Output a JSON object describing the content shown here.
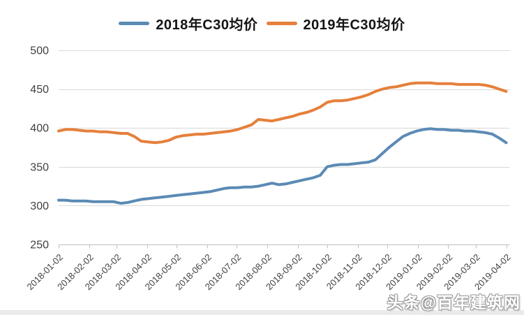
{
  "legend": [
    {
      "label": "2018年C30均价",
      "color": "#5b8ab5"
    },
    {
      "label": "2019年C30均价",
      "color": "#e5803b"
    }
  ],
  "watermark": "头条@百年建筑网",
  "chart_data": {
    "type": "line",
    "title": "",
    "xlabel": "",
    "ylabel": "",
    "ylim": [
      250,
      500
    ],
    "y_ticks": [
      250,
      300,
      350,
      400,
      450,
      500
    ],
    "x_tick_labels": [
      "2018-01-02",
      "2018-02-02",
      "2018-03-02",
      "2018-04-02",
      "2018-05-02",
      "2018-06-02",
      "2018-07-02",
      "2018-08-02",
      "2018-09-02",
      "2018-10-02",
      "2018-11-02",
      "2018-12-02",
      "2019-01-02",
      "2019-02-02",
      "2019-03-02",
      "2019-04-02"
    ],
    "x_tick_day_offsets": [
      0,
      31,
      59,
      90,
      120,
      151,
      181,
      212,
      243,
      273,
      304,
      334,
      365,
      396,
      424,
      455
    ],
    "x_day_span": 455,
    "sample_interval_days": 7,
    "grid": true,
    "legend_position": "top",
    "grid_color": "#d9d9d9",
    "axis_color": "#bfbfbf",
    "tick_label_color": "#3f3f3f",
    "series": [
      {
        "key": "2018-c30",
        "name": "2018年C30均价",
        "color": "#5b8ab5",
        "values": [
          307,
          307,
          306,
          306,
          306,
          305,
          305,
          305,
          305,
          303,
          304,
          306,
          308,
          309,
          310,
          311,
          312,
          313,
          314,
          315,
          316,
          317,
          318,
          320,
          322,
          323,
          323,
          324,
          324,
          325,
          327,
          329,
          327,
          328,
          330,
          332,
          334,
          336,
          339,
          350,
          352,
          353,
          353,
          354,
          355,
          356,
          359,
          367,
          375,
          382,
          389,
          393,
          396,
          398,
          399,
          398,
          398,
          397,
          397,
          396,
          396,
          395,
          394,
          392,
          387,
          381
        ]
      },
      {
        "key": "2019-c30",
        "name": "2019年C30均价",
        "color": "#e5803b",
        "values": [
          396,
          398,
          398,
          397,
          396,
          396,
          395,
          395,
          394,
          393,
          393,
          389,
          383,
          382,
          381,
          382,
          384,
          388,
          390,
          391,
          392,
          392,
          393,
          394,
          395,
          396,
          398,
          401,
          404,
          411,
          410,
          409,
          411,
          413,
          415,
          418,
          420,
          423,
          427,
          433,
          435,
          435,
          436,
          438,
          440,
          443,
          447,
          450,
          452,
          453,
          455,
          457,
          458,
          458,
          458,
          457,
          457,
          457,
          456,
          456,
          456,
          456,
          455,
          453,
          450,
          447
        ]
      }
    ]
  }
}
